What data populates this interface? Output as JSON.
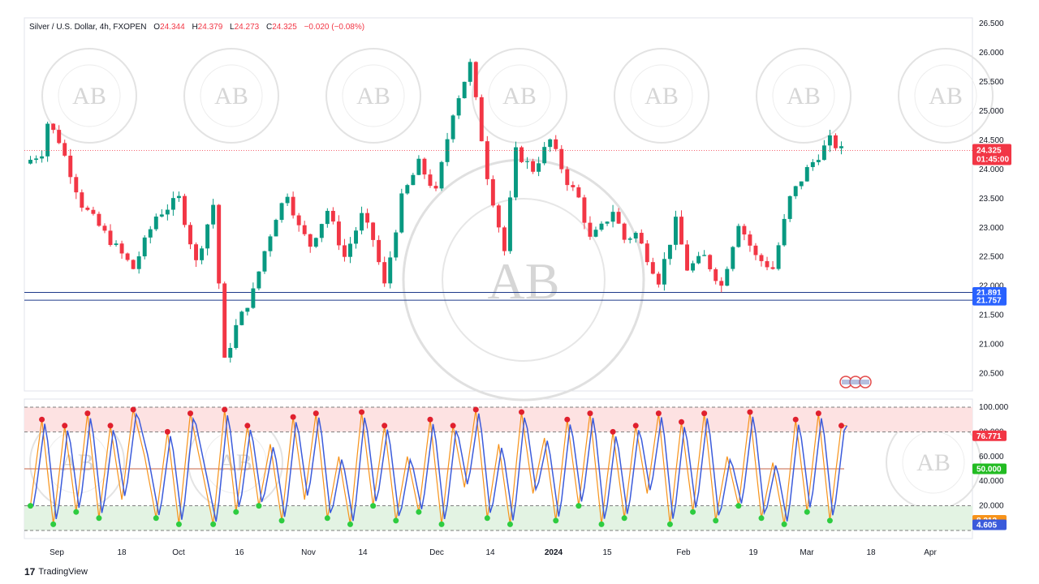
{
  "legend": {
    "symbol": "Silver / U.S. Dollar, 4h, FXOPEN",
    "o_label": "O",
    "o_value": "24.344",
    "h_label": "H",
    "h_value": "24.379",
    "l_label": "L",
    "l_value": "24.273",
    "c_label": "C",
    "c_value": "24.325",
    "change": "−0.020 (−0.08%)"
  },
  "brand": {
    "logo": "17",
    "name": "TradingView"
  },
  "watermark": {
    "monogram": "AB"
  },
  "colors": {
    "up": "#089981",
    "down": "#f23645",
    "level": "#1e3a8a",
    "stoch_k": "#f7931a",
    "stoch_d": "#3b5bdb",
    "overbought_zone": "#fde2e2",
    "oversold_zone": "#e3f3e3",
    "top_marker": "#e0202e",
    "bottom_marker": "#2ecc40",
    "mid_line": "#ee3b3b",
    "mid_line2": "#4cd964"
  },
  "time_axis": {
    "labels": [
      "Sep",
      "18",
      "Oct",
      "16",
      "Nov",
      "14",
      "Dec",
      "14",
      "2024",
      "15",
      "Feb",
      "19",
      "Mar",
      "18",
      "Apr"
    ],
    "bold": [
      "2024"
    ]
  },
  "chart_data": [
    {
      "type": "candlestick",
      "title": "Silver / U.S. Dollar, 4h, FXOPEN",
      "ylim": [
        20.2,
        26.6
      ],
      "y_ticks": [
        "26.500",
        "26.000",
        "25.500",
        "25.000",
        "24.500",
        "24.000",
        "23.500",
        "23.000",
        "22.500",
        "22.000",
        "21.500",
        "21.000",
        "20.500"
      ],
      "path_x": [
        0,
        3,
        4,
        6,
        10,
        14,
        19,
        23,
        27,
        30,
        33,
        35,
        37,
        40,
        42,
        44,
        46,
        48,
        50,
        53,
        56,
        59,
        61,
        63,
        66,
        69,
        72,
        75,
        78,
        81,
        84,
        86,
        89,
        92,
        95,
        97,
        99,
        101,
        103,
        105,
        107,
        111,
        114,
        116,
        119,
        122,
        125,
        128,
        131,
        134,
        137,
        141,
        143
      ],
      "path_y": [
        24.1,
        24.3,
        24.8,
        24.5,
        23.4,
        22.9,
        22.3,
        23.2,
        23.5,
        22.4,
        23.4,
        20.7,
        21.3,
        21.9,
        22.6,
        23.2,
        23.6,
        23.0,
        22.7,
        23.3,
        22.5,
        23.2,
        22.8,
        22.0,
        23.5,
        24.1,
        23.6,
        25.0,
        25.8,
        23.9,
        22.6,
        24.3,
        24.0,
        24.5,
        23.8,
        23.5,
        22.8,
        23.0,
        23.3,
        22.8,
        22.9,
        22.1,
        23.1,
        22.3,
        22.5,
        22.0,
        23.1,
        22.5,
        22.3,
        23.5,
        24.0,
        24.5,
        24.325
      ],
      "n_candles": 143,
      "last": {
        "value": "24.325",
        "countdown": "01:45:00"
      },
      "levels": [
        {
          "label": "21.891",
          "value": 21.891
        },
        {
          "label": "21.757",
          "value": 21.757
        }
      ]
    },
    {
      "type": "line",
      "title": "",
      "ylim": [
        0,
        100
      ],
      "y_ticks": [
        "100.000",
        "80.000",
        "60.000",
        "40.000",
        "20.000"
      ],
      "hlines": [
        100,
        80,
        50,
        20,
        0
      ],
      "zones": {
        "overbought": [
          80,
          100
        ],
        "oversold": [
          0,
          20
        ]
      },
      "series": [
        {
          "name": "",
          "role": "k",
          "last_label": "8.212"
        },
        {
          "name": "",
          "role": "d",
          "last_label": "4.605"
        }
      ],
      "tags": [
        {
          "label": "76.771",
          "value": 76.771,
          "color": "#f23645"
        },
        {
          "label": "50.000",
          "value": 50,
          "color": "#22bb22"
        },
        {
          "label": "8.212",
          "value": 8.212,
          "color": "#f7931a"
        },
        {
          "label": "4.605",
          "value": 4.605,
          "color": "#3b5bdb"
        }
      ],
      "cycle_x": [
        0,
        2,
        4,
        6,
        8,
        10,
        12,
        14,
        16,
        18,
        20,
        22,
        24,
        26,
        28,
        30,
        32,
        34,
        36,
        38,
        40,
        42,
        44,
        46,
        48,
        50,
        52,
        54,
        56,
        58,
        60,
        62,
        64,
        66,
        68,
        70,
        72,
        74,
        76,
        78,
        80,
        82,
        84,
        86,
        88,
        90,
        92,
        94,
        96,
        98,
        100,
        102,
        104,
        106,
        108,
        110,
        112,
        114,
        116,
        118,
        120,
        122,
        124,
        126,
        128,
        130,
        132,
        134,
        136,
        138,
        140,
        142
      ],
      "cycle_y": [
        20,
        90,
        5,
        85,
        15,
        95,
        10,
        85,
        25,
        98,
        60,
        10,
        80,
        5,
        95,
        50,
        5,
        98,
        15,
        85,
        20,
        70,
        8,
        92,
        25,
        95,
        10,
        60,
        5,
        96,
        20,
        85,
        8,
        60,
        15,
        90,
        5,
        85,
        35,
        98,
        10,
        70,
        5,
        96,
        30,
        75,
        8,
        90,
        20,
        95,
        5,
        80,
        10,
        85,
        30,
        95,
        5,
        88,
        15,
        95,
        8,
        60,
        20,
        96,
        10,
        55,
        5,
        90,
        15,
        95,
        8,
        85
      ]
    }
  ]
}
